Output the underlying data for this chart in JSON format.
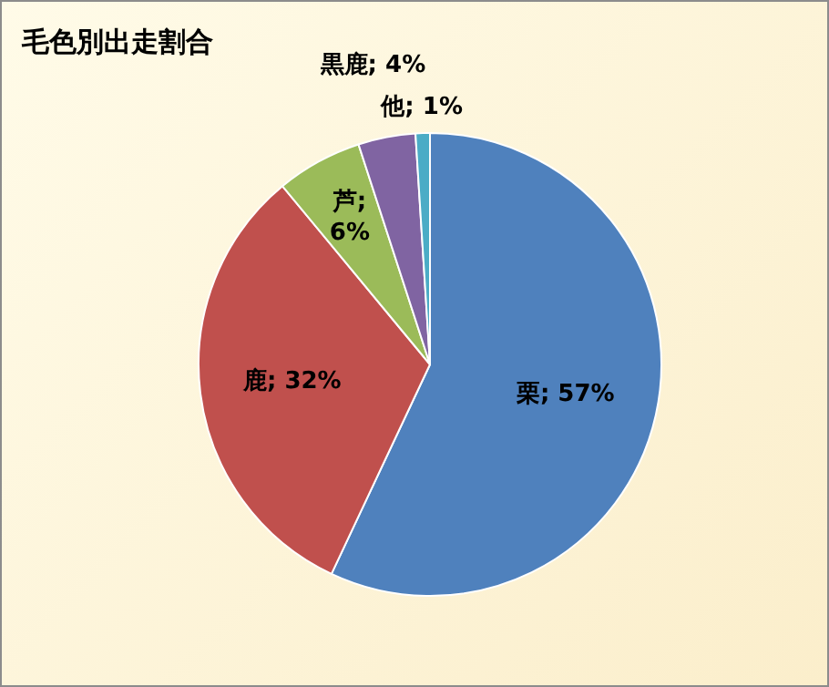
{
  "chart_data": {
    "type": "pie",
    "title": "毛色別出走割合",
    "categories": [
      "栗",
      "鹿",
      "芦",
      "黒鹿",
      "他"
    ],
    "values": [
      57,
      32,
      6,
      4,
      1
    ],
    "colors": [
      "#4f81bd",
      "#c0504d",
      "#9bbb59",
      "#8064a2",
      "#4bacc6"
    ],
    "value_labels": [
      "; 57%",
      "; 32%",
      "; 6%",
      "; 4%",
      "; 1%"
    ],
    "legend": false
  }
}
